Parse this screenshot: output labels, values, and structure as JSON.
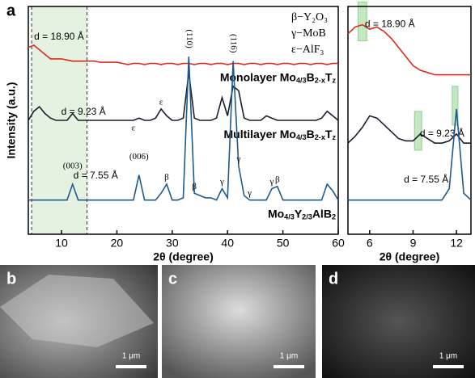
{
  "panel_label": "a",
  "chart_data": [
    {
      "type": "line",
      "xlabel": "2θ (degree)",
      "ylabel": "Intensity (a.u.)",
      "xlim": [
        4,
        60
      ],
      "xticks": [
        10,
        20,
        30,
        40,
        50,
        60
      ],
      "ylim": [
        0,
        100
      ],
      "highlight": [
        [
          4.6,
          14.6
        ]
      ],
      "legend": [
        "β−Y₂O₃",
        "γ−MoB",
        "ε−AlF₃"
      ],
      "x": [
        4,
        5,
        6,
        7,
        8,
        9,
        10,
        11,
        12,
        13,
        14,
        15,
        16,
        17,
        18,
        19,
        20,
        21,
        22,
        23,
        24,
        25,
        26,
        27,
        28,
        29,
        30,
        31,
        32,
        33,
        34,
        35,
        36,
        37,
        38,
        39,
        40,
        41,
        42,
        43,
        44,
        45,
        46,
        47,
        48,
        49,
        50,
        51,
        52,
        53,
        54,
        55,
        56,
        57,
        58,
        59,
        60
      ],
      "series": [
        {
          "name": [
            "Monolayer Mo",
            "4/3",
            "B",
            "2-x",
            "T",
            "z"
          ],
          "color": "#e0281e",
          "values": [
            82,
            83,
            81,
            79,
            77,
            77,
            77,
            76.5,
            76,
            76,
            76,
            76,
            76,
            75.5,
            75.5,
            75.5,
            75.5,
            75,
            74.5,
            75,
            75,
            74.5,
            75,
            75,
            74.5,
            75,
            75,
            74.5,
            75,
            75,
            74.5,
            75,
            75,
            74.5,
            75,
            75,
            74.5,
            75,
            75,
            74.5,
            75,
            75,
            74.5,
            75,
            75,
            74.5,
            75,
            75,
            74.5,
            75,
            75,
            74.5,
            75,
            75,
            74.5,
            75,
            75
          ],
          "d_label": {
            "text": "d = 18.90 Å",
            "x": 4.6
          },
          "peak_labels": []
        },
        {
          "name": [
            "Multilayer Mo",
            "4/3",
            "B",
            "2-x",
            "T",
            "z"
          ],
          "color": "#1a1f2e",
          "values": [
            50,
            54,
            56,
            53,
            51,
            50,
            50,
            50,
            53,
            50,
            50,
            50,
            50,
            50,
            50,
            50,
            50,
            50,
            50,
            50,
            51,
            50,
            50,
            51,
            55,
            52,
            50,
            50,
            51,
            71,
            51,
            50,
            50,
            50,
            51,
            60,
            52,
            65,
            63,
            51,
            50,
            50,
            50,
            52,
            51,
            50,
            50,
            50,
            50,
            50,
            50,
            50,
            50,
            51,
            54,
            52,
            50
          ],
          "d_label": {
            "text": "d = 9.23 Å",
            "x": 9.5
          },
          "peak_labels": [
            {
              "text": "ε",
              "x": 23
            },
            {
              "text": "ε",
              "x": 28
            }
          ]
        },
        {
          "name": [
            "Mo",
            "4/3",
            "Y",
            "2/3",
            "AlB",
            "2"
          ],
          "color": "#1f5a8c",
          "values": [
            15,
            15,
            15,
            15,
            15,
            15,
            15,
            15,
            22,
            15,
            15,
            15,
            15,
            15,
            15,
            15,
            15,
            15,
            15,
            15,
            26,
            15,
            15,
            15,
            18,
            22,
            15,
            15,
            16,
            78,
            18,
            17,
            16,
            16,
            15,
            20,
            16,
            76,
            30,
            17,
            15,
            15,
            15,
            15,
            20,
            21,
            15,
            15,
            15,
            15,
            15,
            15,
            15,
            15,
            22,
            19,
            15
          ],
          "d_label": {
            "text": "d = 7.55 Å",
            "x": 11.7
          },
          "peak_labels": [
            {
              "text": "(003)",
              "x": 12
            },
            {
              "text": "(006)",
              "x": 24
            },
            {
              "text": "(110)",
              "x": 33
            },
            {
              "text": "(116)",
              "x": 41
            },
            {
              "text": "β",
              "x": 29
            },
            {
              "text": "β",
              "x": 34
            },
            {
              "text": "γ",
              "x": 39
            },
            {
              "text": "γ",
              "x": 42
            },
            {
              "text": "γ",
              "x": 44
            },
            {
              "text": "γ",
              "x": 48
            },
            {
              "text": "β",
              "x": 49
            }
          ]
        }
      ]
    },
    {
      "type": "line",
      "xlabel": "2θ (degree)",
      "xlim": [
        4.5,
        13
      ],
      "xticks": [
        6,
        9,
        12
      ],
      "ylim": [
        0,
        100
      ],
      "highlight": [
        [
          5.2,
          5.8
        ],
        [
          9.1,
          9.6
        ],
        [
          11.7,
          12.1
        ]
      ],
      "x": [
        4.5,
        5,
        5.5,
        6,
        6.5,
        7,
        7.5,
        8,
        8.5,
        9,
        9.5,
        10,
        10.5,
        11,
        11.5,
        12,
        12.5,
        13
      ],
      "series": [
        {
          "color": "#e0281e",
          "values": [
            88,
            91,
            92,
            90,
            91,
            89,
            86,
            82,
            78,
            74,
            72,
            71,
            70,
            70,
            70,
            70,
            70,
            70
          ],
          "d_label": {
            "text": "d = 18.90 Å",
            "x": 5.5
          }
        },
        {
          "color": "#1a1f2e",
          "values": [
            40,
            43,
            47,
            52,
            51,
            48,
            45,
            42,
            41,
            41,
            44,
            42,
            40,
            40,
            41,
            44,
            40,
            40
          ],
          "d_label": {
            "text": "d = 9.23 Å",
            "x": 9.3
          }
        },
        {
          "color": "#1f5a8c",
          "values": [
            15,
            15,
            15,
            15,
            15,
            15,
            15,
            15,
            15,
            15,
            15,
            15,
            15,
            15,
            20,
            55,
            18,
            15
          ],
          "d_label": {
            "text": "d = 7.55 Å",
            "x": 8.2
          }
        }
      ]
    }
  ],
  "panels": [
    {
      "label": "b",
      "scale": "1 μm"
    },
    {
      "label": "c",
      "scale": "1 μm"
    },
    {
      "label": "d",
      "scale": "1 μm"
    }
  ]
}
